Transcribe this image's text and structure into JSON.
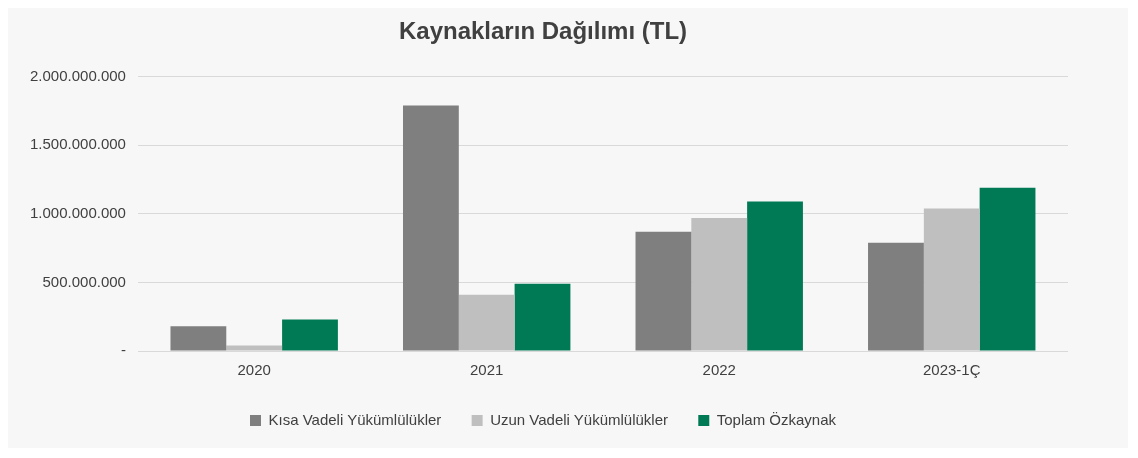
{
  "chart_data": {
    "type": "bar",
    "title": "Kaynakların Dağılımı (TL)",
    "categories": [
      "2020",
      "2021",
      "2022",
      "2023-1Ç"
    ],
    "series": [
      {
        "name": "Kısa Vadeli Yükümlülükler",
        "color": "#7f7f7f",
        "values": [
          180000000,
          1790000000,
          870000000,
          790000000
        ]
      },
      {
        "name": "Uzun Vadeli Yükümlülükler",
        "color": "#bfbfbf",
        "values": [
          40000000,
          410000000,
          970000000,
          1040000000
        ]
      },
      {
        "name": "Toplam Özkaynak",
        "color": "#007a55",
        "values": [
          230000000,
          490000000,
          1090000000,
          1190000000
        ]
      }
    ],
    "ylim": [
      0,
      2000000000
    ],
    "yticks": [
      {
        "value": 0,
        "label": "-"
      },
      {
        "value": 500000000,
        "label": "500.000.000"
      },
      {
        "value": 1000000000,
        "label": "1.000.000.000"
      },
      {
        "value": 1500000000,
        "label": "1.500.000.000"
      },
      {
        "value": 2000000000,
        "label": "2.000.000.000"
      }
    ],
    "grid": "y",
    "legend": "bottom"
  }
}
